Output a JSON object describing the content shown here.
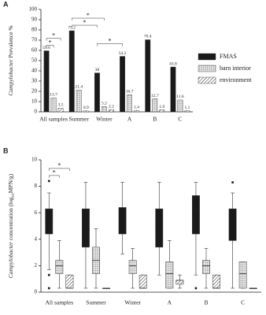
{
  "chart_data": [
    {
      "type": "bar",
      "panel": "A",
      "ylabel_parts": [
        "Campylobacter",
        " Prevalence %"
      ],
      "categories": [
        "All samples",
        "Summer",
        "Winter",
        "A",
        "B",
        "C"
      ],
      "series": [
        {
          "name": "FMAS",
          "color": "#1a1a1a",
          "pattern": null,
          "values": [
            59.6,
            79.2,
            38.0,
            54.2,
            70.4,
            43.8
          ]
        },
        {
          "name": "barn interior",
          "color": "#d9d9d9",
          "pattern": "dots",
          "values": [
            13.7,
            21.4,
            5.2,
            16.7,
            12.7,
            11.6
          ]
        },
        {
          "name": "environment",
          "color": "#ffffff",
          "pattern": "hatch",
          "values": [
            3.5,
            0.9,
            2.2,
            1.4,
            1.9,
            1.1
          ]
        }
      ],
      "ylim": [
        0,
        100
      ],
      "yticks": [
        0,
        10,
        20,
        30,
        40,
        50,
        60,
        70,
        80,
        90,
        100
      ],
      "legend": "right",
      "annotations": [
        {
          "text": "*",
          "from": {
            "category": 0,
            "series": 0
          },
          "to": {
            "category": 0,
            "series": 1
          }
        },
        {
          "text": "*",
          "from": {
            "category": 0,
            "series": 0
          },
          "to": {
            "category": 0,
            "series": 2
          }
        },
        {
          "text": "*",
          "from": {
            "category": 1,
            "series": 0
          },
          "to": {
            "category": 2,
            "series": 0
          }
        },
        {
          "text": "*",
          "from": {
            "category": 1,
            "series": 0
          },
          "to": {
            "category": 2,
            "series": 1
          }
        },
        {
          "text": "*",
          "from": {
            "category": 2,
            "series": 0
          },
          "to": {
            "category": 3,
            "series": 0
          }
        }
      ]
    },
    {
      "type": "box",
      "panel": "B",
      "ylabel_parts": [
        "Campylobacter",
        " concentration (log",
        "10",
        "MPN/g)"
      ],
      "categories": [
        "All samples",
        "Summer",
        "Winter",
        "A",
        "B",
        "C"
      ],
      "series": [
        {
          "name": "FMAS",
          "color": "#1a1a1a",
          "pattern": null,
          "boxes": [
            {
              "min": 1.7,
              "q1": 4.4,
              "median": 5.4,
              "q3": 6.3,
              "max": 7.5,
              "outliers": [
                8.4,
                1.3,
                0.3
              ]
            },
            {
              "min": 0.3,
              "q1": 3.4,
              "median": 4.8,
              "q3": 6.3,
              "max": 8.3,
              "outliers": []
            },
            {
              "min": 2.9,
              "q1": 4.4,
              "median": 5.4,
              "q3": 6.4,
              "max": 8.3,
              "outliers": []
            },
            {
              "min": 1.3,
              "q1": 3.4,
              "median": 4.9,
              "q3": 6.3,
              "max": 8.3,
              "outliers": []
            },
            {
              "min": 1.3,
              "q1": 4.4,
              "median": 5.8,
              "q3": 7.3,
              "max": 8.3,
              "outliers": [
                0.3
              ]
            },
            {
              "min": 0.3,
              "q1": 3.9,
              "median": 5.0,
              "q3": 6.3,
              "max": 7.5,
              "outliers": [
                8.3
              ]
            }
          ]
        },
        {
          "name": "barn interior",
          "color": "#d9d9d9",
          "pattern": "dots",
          "boxes": [
            {
              "min": 0.3,
              "q1": 1.4,
              "median": 2.0,
              "q3": 2.4,
              "max": 3.9,
              "outliers": []
            },
            {
              "min": 0.3,
              "q1": 1.4,
              "median": 2.4,
              "q3": 3.4,
              "max": 4.8,
              "outliers": []
            },
            {
              "min": 0.3,
              "q1": 1.4,
              "median": 2.0,
              "q3": 2.4,
              "max": 3.3,
              "outliers": []
            },
            {
              "min": 0.3,
              "q1": 0.3,
              "median": 1.4,
              "q3": 2.3,
              "max": 3.9,
              "outliers": []
            },
            {
              "min": 0.3,
              "q1": 1.4,
              "median": 2.0,
              "q3": 2.4,
              "max": 3.3,
              "outliers": []
            },
            {
              "min": 0.3,
              "q1": 0.3,
              "median": 1.4,
              "q3": 2.3,
              "max": 2.3,
              "outliers": []
            }
          ]
        },
        {
          "name": "environment",
          "color": "#ffffff",
          "pattern": "hatch",
          "boxes": [
            {
              "min": 0.3,
              "q1": 0.3,
              "median": 0.3,
              "q3": 1.3,
              "max": 1.3,
              "outliers": []
            },
            {
              "min": 0.3,
              "q1": 0.3,
              "median": 0.3,
              "q3": 0.3,
              "max": 0.3,
              "outliers": []
            },
            {
              "min": 0.3,
              "q1": 0.3,
              "median": 0.3,
              "q3": 1.3,
              "max": 1.3,
              "outliers": []
            },
            {
              "min": 0.3,
              "q1": 0.6,
              "median": 0.9,
              "q3": 0.9,
              "max": 1.3,
              "outliers": []
            },
            {
              "min": 0.3,
              "q1": 0.3,
              "median": 0.3,
              "q3": 1.3,
              "max": 1.3,
              "outliers": []
            },
            {
              "min": 0.3,
              "q1": 0.3,
              "median": 0.3,
              "q3": 0.3,
              "max": 0.3,
              "outliers": []
            }
          ]
        }
      ],
      "ylim": [
        0,
        10
      ],
      "yticks": [
        0,
        2,
        4,
        6,
        8,
        10
      ],
      "annotations": [
        {
          "text": "*",
          "from": {
            "category": 0,
            "series": 0
          },
          "to": {
            "category": 0,
            "series": 1
          }
        },
        {
          "text": "*",
          "from": {
            "category": 0,
            "series": 0
          },
          "to": {
            "category": 0,
            "series": 2
          }
        }
      ]
    }
  ]
}
